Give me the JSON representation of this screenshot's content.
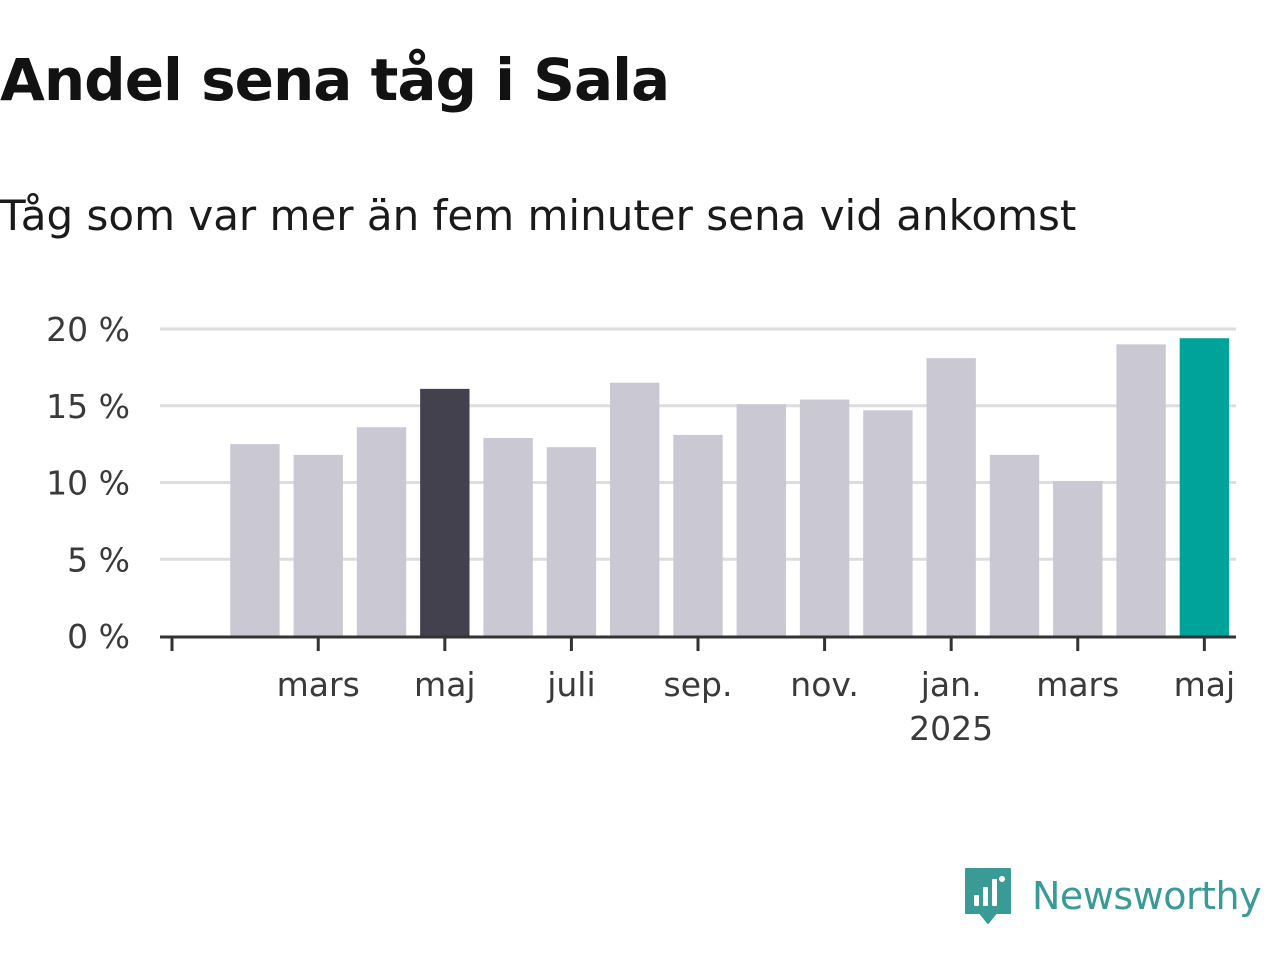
{
  "title": "Andel sena tåg i Sala",
  "subtitle": "Tåg som var mer än fem minuter sena vid ankomst",
  "brand": {
    "name": "Newsworthy",
    "logo_icon": "newsworthy-chart-bubble-icon",
    "color": "#3a9a96"
  },
  "chart_data": {
    "type": "bar",
    "title": "Andel sena tåg i Sala",
    "subtitle": "Tåg som var mer än fem minuter sena vid ankomst",
    "xlabel": "",
    "ylabel": "",
    "ylim": [
      0,
      20
    ],
    "grid": true,
    "legend": "none",
    "y_ticks": [
      {
        "value": 0,
        "label": "0 %"
      },
      {
        "value": 5,
        "label": "5 %"
      },
      {
        "value": 10,
        "label": "10 %"
      },
      {
        "value": 15,
        "label": "15 %"
      },
      {
        "value": 20,
        "label": "20 %"
      }
    ],
    "categories": [
      "2024-01",
      "2024-02",
      "2024-03",
      "2024-04",
      "2024-05",
      "2024-06",
      "2024-07",
      "2024-08",
      "2024-09",
      "2024-10",
      "2024-11",
      "2024-12",
      "2025-01",
      "2025-02",
      "2025-03",
      "2025-04",
      "2025-05"
    ],
    "values": [
      null,
      12.5,
      11.8,
      13.6,
      16.1,
      12.9,
      12.3,
      16.5,
      13.1,
      15.1,
      15.4,
      14.7,
      18.1,
      11.8,
      10.1,
      19.0,
      19.4
    ],
    "x_ticks": [
      {
        "category": "2024-01",
        "label": ""
      },
      {
        "category": "2024-03",
        "label": "mars"
      },
      {
        "category": "2024-05",
        "label": "maj"
      },
      {
        "category": "2024-07",
        "label": "juli"
      },
      {
        "category": "2024-09",
        "label": "sep."
      },
      {
        "category": "2024-11",
        "label": "nov."
      },
      {
        "category": "2025-01",
        "label": "jan.",
        "sublabel": "2025"
      },
      {
        "category": "2025-03",
        "label": "mars"
      },
      {
        "category": "2025-05",
        "label": "maj"
      }
    ],
    "colors": {
      "default": "#c9c8d3",
      "highlight_previous": "#43414e",
      "highlight_current": "#00a39a",
      "grid": "#dddddd",
      "axis": "#333333"
    },
    "highlights": {
      "2024-05": "highlight_previous",
      "2025-05": "highlight_current"
    }
  }
}
